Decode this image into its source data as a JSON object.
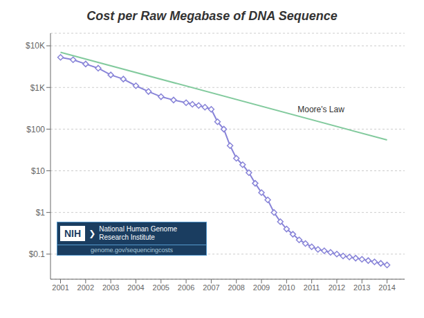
{
  "chart_data": {
    "type": "line",
    "title": "Cost per Raw Megabase of DNA Sequence",
    "log": "y",
    "grid": true,
    "xlim": [
      2000.6,
      2014.7
    ],
    "xticks": [
      2001,
      2002,
      2003,
      2004,
      2005,
      2006,
      2007,
      2008,
      2009,
      2010,
      2011,
      2012,
      2013,
      2014
    ],
    "ylim": [
      0.025,
      20000
    ],
    "yticks": [
      {
        "value": 0.1,
        "label": "$0.1"
      },
      {
        "value": 1,
        "label": "$1"
      },
      {
        "value": 10,
        "label": "$10"
      },
      {
        "value": 100,
        "label": "$100"
      },
      {
        "value": 1000,
        "label": "$1K"
      },
      {
        "value": 10000,
        "label": "$10K"
      }
    ],
    "series": [
      {
        "color": "#8884d8",
        "marker": "diamond",
        "x": [
          2001.0,
          2001.5,
          2002.0,
          2002.5,
          2003.0,
          2003.5,
          2004.0,
          2004.5,
          2005.0,
          2005.5,
          2006.0,
          2006.25,
          2006.5,
          2006.75,
          2007.0,
          2007.25,
          2007.5,
          2007.75,
          2008.0,
          2008.25,
          2008.5,
          2008.75,
          2009.0,
          2009.25,
          2009.5,
          2009.75,
          2010.0,
          2010.25,
          2010.5,
          2010.75,
          2011.0,
          2011.25,
          2011.5,
          2011.75,
          2012.0,
          2012.25,
          2012.5,
          2012.75,
          2013.0,
          2013.25,
          2013.5,
          2013.75,
          2014.0
        ],
        "values": [
          5282,
          4635,
          3657,
          2900,
          2000,
          1590,
          1100,
          800,
          600,
          500,
          430,
          395,
          370,
          335,
          300,
          150,
          100,
          40,
          20,
          14,
          9,
          5,
          3.0,
          2.0,
          1.0,
          0.6,
          0.4,
          0.3,
          0.22,
          0.18,
          0.15,
          0.13,
          0.12,
          0.11,
          0.1,
          0.09,
          0.085,
          0.08,
          0.075,
          0.07,
          0.065,
          0.06,
          0.055
        ]
      },
      {
        "color": "#82ca9d",
        "x": [
          2001,
          2014
        ],
        "values": [
          7000,
          55
        ]
      }
    ],
    "annotations": [
      {
        "text": "Moore's Law",
        "x": 2010.3,
        "y": 300
      },
      {
        "text": "NIH"
      },
      {
        "text": "❯"
      },
      {
        "text": "National Human Genome\nResearch Institute"
      },
      {
        "text": "genome.gov/sequencingcosts"
      }
    ]
  }
}
